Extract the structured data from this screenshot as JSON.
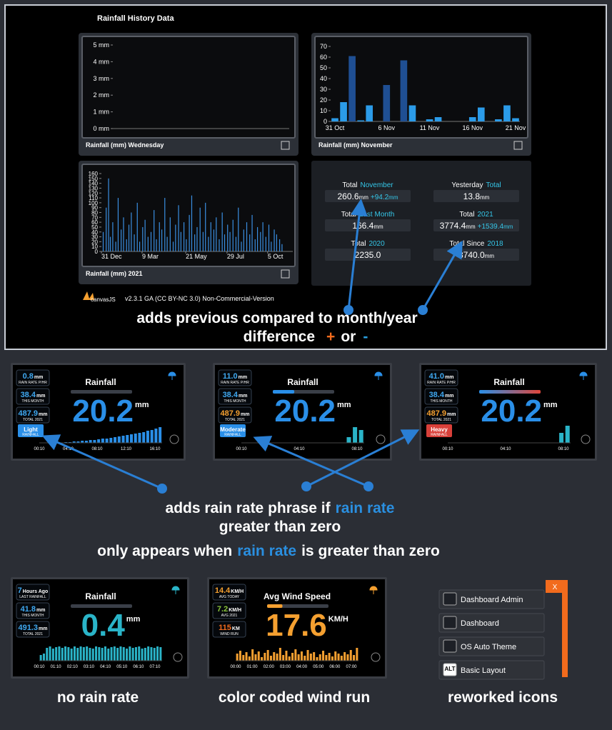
{
  "header": {
    "title": "Rainfall History Data"
  },
  "charts": [
    {
      "type": "line",
      "caption": "Rainfall (mm) Wednesday",
      "ylim": [
        0,
        5
      ],
      "yticks": [
        {
          "value": 0,
          "label": "0 mm"
        },
        {
          "value": 1,
          "label": "1 mm"
        },
        {
          "value": 2,
          "label": "2 mm"
        },
        {
          "value": 3,
          "label": "3 mm"
        },
        {
          "value": 4,
          "label": "4 mm"
        },
        {
          "value": 5,
          "label": "5 mm"
        }
      ]
    },
    {
      "type": "bar",
      "caption": "Rainfall (mm) November",
      "categories": [
        "31 Oct",
        null,
        null,
        null,
        null,
        null,
        "6 Nov",
        null,
        null,
        null,
        null,
        "11 Nov",
        null,
        null,
        null,
        null,
        "16 Nov",
        null,
        null,
        null,
        null,
        "21 Nov"
      ],
      "series": [
        {
          "color": "#1f4f93",
          "values": [
            null,
            null,
            61,
            null,
            null,
            null,
            34,
            null,
            57,
            null,
            null,
            null,
            null,
            null,
            null,
            null,
            null,
            null,
            null,
            null,
            null,
            null
          ]
        },
        {
          "color": "#2b9be8",
          "values": [
            3,
            18,
            null,
            1,
            15,
            null,
            null,
            null,
            null,
            15,
            null,
            2,
            4,
            null,
            null,
            null,
            4,
            13,
            null,
            2,
            15,
            3
          ]
        }
      ],
      "ylim": [
        0,
        70
      ],
      "yticks": [
        0,
        10,
        20,
        30,
        40,
        50,
        60,
        70
      ]
    },
    {
      "type": "bar",
      "caption": "Rainfall (mm) 2021",
      "color": "#3a8ee0",
      "x": [
        3,
        8,
        12,
        15,
        19,
        24,
        28,
        33,
        37,
        42,
        46,
        50,
        55,
        60,
        64,
        69,
        73,
        78,
        83,
        88,
        92,
        97,
        101,
        106,
        110,
        115,
        120,
        124,
        129,
        133,
        138,
        142,
        147,
        151,
        156,
        160,
        165,
        170,
        174,
        179,
        183,
        188,
        192,
        197,
        202,
        206,
        211,
        215,
        220,
        225,
        229,
        234,
        238,
        243,
        248,
        252,
        257,
        261,
        266,
        270,
        275,
        280,
        284,
        289,
        293,
        298,
        302
      ],
      "values": [
        40,
        90,
        150,
        30,
        60,
        20,
        110,
        45,
        70,
        25,
        55,
        80,
        35,
        100,
        20,
        50,
        65,
        30,
        40,
        85,
        25,
        60,
        45,
        110,
        30,
        70,
        20,
        55,
        95,
        40,
        60,
        25,
        75,
        115,
        35,
        50,
        90,
        40,
        100,
        30,
        60,
        45,
        70,
        25,
        80,
        35,
        55,
        40,
        65,
        30,
        90,
        20,
        45,
        60,
        35,
        75,
        25,
        50,
        40,
        60,
        30,
        55,
        20,
        45,
        35,
        25,
        15
      ],
      "xlim": [
        0,
        320
      ],
      "xticks": [
        {
          "value": 0,
          "label": "31 Dec"
        },
        {
          "value": 68,
          "label": "9 Mar"
        },
        {
          "value": 141,
          "label": "21 May"
        },
        {
          "value": 210,
          "label": "29 Jul"
        },
        {
          "value": 278,
          "label": "5 Oct"
        }
      ],
      "ylim": [
        0,
        160
      ],
      "yticks": [
        0,
        10,
        20,
        30,
        40,
        50,
        60,
        70,
        80,
        90,
        100,
        110,
        120,
        130,
        140,
        150,
        160
      ]
    }
  ],
  "totals": [
    {
      "label": "Total",
      "accent": "November",
      "value": "260.6",
      "unit": "mm",
      "diff": "+94.2",
      "diff_unit": "mm"
    },
    {
      "label": "Yesterday",
      "accent": "Total",
      "value": "13.8",
      "unit": "mm"
    },
    {
      "label": "Total",
      "accent": "Last Month",
      "value": "166.4",
      "unit": "mm"
    },
    {
      "label": "Total",
      "accent": "2021",
      "value": "3774.4",
      "unit": "mm",
      "diff": "+1539.4",
      "diff_unit": "mm"
    },
    {
      "label": "Total",
      "accent": "2020",
      "value": "2235.0"
    },
    {
      "label": "Total Since",
      "accent": "2018",
      "value": "3740.0",
      "unit": "mm"
    }
  ],
  "credit": {
    "logo": "canvasJS",
    "version": "v2.3.1 GA (CC BY-NC 3.0) Non-Commercial-Version"
  },
  "annotation_top": {
    "line1": "adds previous compared to month/year",
    "line2": "difference",
    "plus": "+",
    "or": "or",
    "minus": "-"
  },
  "annotation_mid": {
    "a": "adds rain rate phrase if",
    "accent": "rain rate",
    "b": "greater than zero",
    "c": "only appears when",
    "d": "is greater than zero"
  },
  "tiles": [
    {
      "title": "Rainfall",
      "value": "20.2",
      "unit": "mm",
      "value_color": "#2a8fe8",
      "meter": 0,
      "meter_color": "#2a8fe8",
      "stats": [
        {
          "value": "0.8",
          "unit": "mm",
          "label": "RAIN RATE P/HR",
          "color": "#3fa8f0"
        },
        {
          "value": "38.4",
          "unit": "mm",
          "label": "THIS MONTH",
          "color": "#3fa8f0"
        },
        {
          "value": "487.9",
          "unit": "mm",
          "label": "TOTAL 2021",
          "color": "#3fa8f0"
        }
      ],
      "badge": {
        "text": "Light",
        "sub": "RAINFALL",
        "color": "#2a8fe8"
      },
      "times": [
        "00:10",
        "04:10",
        "08:10",
        "12:10",
        "16:10"
      ],
      "bar_color": "#2a8fe8",
      "ylim": [
        0,
        30
      ],
      "bars": [
        0,
        0,
        0,
        0,
        0,
        0,
        1,
        1,
        2,
        2,
        3,
        3,
        4,
        4,
        5,
        6,
        6,
        7,
        8,
        9,
        10,
        11,
        12,
        13,
        14,
        15,
        17,
        18,
        20,
        22
      ]
    },
    {
      "title": "Rainfall",
      "value": "20.2",
      "unit": "mm",
      "value_color": "#2a8fe8",
      "meter": 0.35,
      "meter_color": "#2a8fe8",
      "stats": [
        {
          "value": "11.0",
          "unit": "mm",
          "label": "RAIN RATE P/HR",
          "color": "#3fa8f0"
        },
        {
          "value": "38.4",
          "unit": "mm",
          "label": "THIS MONTH",
          "color": "#3fa8f0"
        },
        {
          "value": "487.9",
          "unit": "mm",
          "label": "TOTAL 2021",
          "color": "#f5a030"
        }
      ],
      "badge": {
        "text": "Moderate",
        "sub": "RAINFALL",
        "color": "#2a8fe8"
      },
      "times": [
        "00:10",
        "04:10",
        "08:10"
      ],
      "bar_color": "#2ab4c8",
      "ylim": [
        0,
        30
      ],
      "bars": [
        0,
        0,
        0,
        0,
        0,
        0,
        0,
        0,
        0,
        0,
        0,
        0,
        0,
        0,
        0,
        0,
        0,
        8,
        22,
        18
      ]
    },
    {
      "title": "Rainfall",
      "value": "20.2",
      "unit": "mm",
      "value_color": "#2a8fe8",
      "meter": 1,
      "meter_color": "#e0463a",
      "stats": [
        {
          "value": "41.0",
          "unit": "mm",
          "label": "RAIN RATE P/HR",
          "color": "#3fa8f0"
        },
        {
          "value": "38.4",
          "unit": "mm",
          "label": "THIS MONTH",
          "color": "#3fa8f0"
        },
        {
          "value": "487.9",
          "unit": "mm",
          "label": "TOTAL 2021",
          "color": "#f5a030"
        }
      ],
      "badge": {
        "text": "Heavy",
        "sub": "RAINFALL",
        "color": "#d8403a"
      },
      "times": [
        "00:10",
        "04:10",
        "08:10"
      ],
      "bar_color": "#2ab4c8",
      "ylim": [
        0,
        30
      ],
      "bars": [
        0,
        0,
        0,
        0,
        0,
        0,
        0,
        0,
        0,
        0,
        0,
        0,
        0,
        0,
        0,
        0,
        0,
        0,
        14,
        24
      ]
    },
    {
      "title": "Rainfall",
      "value": "0.4",
      "unit": "mm",
      "value_color": "#2ab4c8",
      "meter": 0,
      "meter_color": "#2ab4c8",
      "stats": [
        {
          "value": "7",
          "unit": "Hours Ago",
          "label": "LAST RAINFALL",
          "color": "#3fa8f0"
        },
        {
          "value": "41.8",
          "unit": "mm",
          "label": "THIS MONTH",
          "color": "#3fa8f0"
        },
        {
          "value": "491.3",
          "unit": "mm",
          "label": "TOTAL 2021",
          "color": "#3fa8f0"
        }
      ],
      "times": [
        "00:10",
        "01:10",
        "02:10",
        "03:10",
        "04:10",
        "05:10",
        "06:10",
        "07:10"
      ],
      "bar_color": "#2ab4c8",
      "ylim": [
        0,
        30
      ],
      "bars": [
        8,
        10,
        18,
        20,
        17,
        19,
        20,
        18,
        20,
        19,
        17,
        20,
        18,
        20,
        19,
        20,
        18,
        17,
        20,
        19,
        18,
        20,
        17,
        19,
        20,
        18,
        20,
        19,
        17,
        20,
        18,
        19,
        20,
        17,
        18,
        20,
        19,
        18,
        20,
        19
      ]
    },
    {
      "title": "Avg Wind Speed",
      "value": "17.6",
      "unit": "KM/H",
      "value_color": "#f5a030",
      "meter": 0.25,
      "meter_color": "#f5a030",
      "stats": [
        {
          "value": "14.4",
          "unit": "KM/H",
          "label": "AVG TODAY",
          "color": "#f5a030"
        },
        {
          "value": "7.2",
          "unit": "KM/H",
          "label": "AVG 2021",
          "color": "#8ac43a"
        },
        {
          "value": "115",
          "unit": "KM",
          "label": "WIND RUN",
          "color": "#f26b1d"
        }
      ],
      "times": [
        "00:00",
        "01:00",
        "02:00",
        "03:00",
        "04:00",
        "05:00",
        "06:00",
        "07:00"
      ],
      "bar_color": "#f5a030",
      "ylim": [
        0,
        30
      ],
      "bars": [
        10,
        14,
        8,
        12,
        6,
        16,
        9,
        13,
        5,
        11,
        15,
        7,
        12,
        10,
        18,
        8,
        14,
        6,
        11,
        16,
        9,
        13,
        7,
        15,
        10,
        12,
        5,
        9,
        14,
        8,
        11,
        6,
        13,
        10,
        7,
        12,
        9,
        15,
        8,
        18
      ]
    }
  ],
  "menu": {
    "close": "X",
    "items": [
      {
        "label": "Dashboard Admin"
      },
      {
        "label": "Dashboard"
      },
      {
        "label": "OS Auto Theme"
      },
      {
        "label": "Basic Layout",
        "icon": "ALT"
      }
    ]
  },
  "captions": [
    "no rain rate",
    "color coded wind run",
    "reworked icons"
  ]
}
